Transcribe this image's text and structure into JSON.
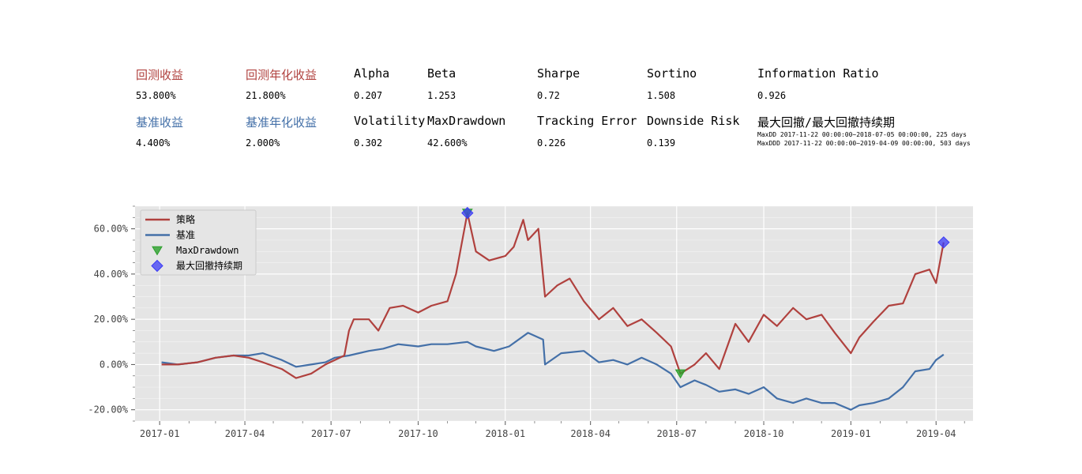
{
  "metrics": {
    "row1": [
      {
        "key": "return_label",
        "label": "回测收益",
        "value": "53.800%",
        "color": "#b0413e"
      },
      {
        "key": "annual_return_label",
        "label": "回测年化收益",
        "value": "21.800%",
        "color": "#b0413e"
      },
      {
        "key": "alpha",
        "label": "Alpha",
        "value": "0.207",
        "color": "#000000"
      },
      {
        "key": "beta",
        "label": "Beta",
        "value": "1.253",
        "color": "#000000"
      },
      {
        "key": "sharpe",
        "label": "Sharpe",
        "value": "0.72",
        "color": "#000000"
      },
      {
        "key": "sortino",
        "label": "Sortino",
        "value": "1.508",
        "color": "#000000"
      },
      {
        "key": "information_ratio",
        "label": "Information Ratio",
        "value": "0.926",
        "color": "#000000"
      }
    ],
    "row2": [
      {
        "key": "benchmark_return",
        "label": "基准收益",
        "value": "4.400%",
        "color": "#4470a8"
      },
      {
        "key": "benchmark_annual_return",
        "label": "基准年化收益",
        "value": "2.000%",
        "color": "#4470a8"
      },
      {
        "key": "volatility",
        "label": "Volatility",
        "value": "0.302",
        "color": "#000000"
      },
      {
        "key": "max_drawdown",
        "label": "MaxDrawdown",
        "value": "42.600%",
        "color": "#000000"
      },
      {
        "key": "tracking_error",
        "label": "Tracking Error",
        "value": "0.226",
        "color": "#000000"
      },
      {
        "key": "downside_risk",
        "label": "Downside Risk",
        "value": "0.139",
        "color": "#000000"
      },
      {
        "key": "maxdd_period",
        "label": "最大回撤/最大回撤持续期",
        "value": "",
        "color": "#000000"
      }
    ],
    "maxdd_note": "MaxDD  2017-11-22 00:00:00~2018-07-05 00:00:00, 225 days",
    "maxddd_note": "MaxDDD 2017-11-22 00:00:00~2019-04-09 00:00:00, 503 days"
  },
  "chart_data": {
    "type": "line",
    "title": "",
    "xlabel": "",
    "ylabel": "",
    "grid": true,
    "legend_position": "top-left",
    "xlim": [
      "2016-12-06",
      "2019-05-10"
    ],
    "ylim": [
      -25,
      70
    ],
    "y_ticks": [
      -20,
      0,
      20,
      40,
      60
    ],
    "y_tick_labels": [
      "-20.00%",
      "0.00%",
      "20.00%",
      "40.00%",
      "60.00%"
    ],
    "x_ticks": [
      "2017-01-01",
      "2017-04-01",
      "2017-07-01",
      "2017-10-01",
      "2018-01-01",
      "2018-04-01",
      "2018-07-01",
      "2018-10-01",
      "2019-01-01",
      "2019-04-01"
    ],
    "x_tick_labels": [
      "2017-01",
      "2017-04",
      "2017-07",
      "2017-10",
      "2018-01",
      "2018-04",
      "2018-07",
      "2018-10",
      "2019-01",
      "2019-04"
    ],
    "series": [
      {
        "name": "策略",
        "color": "#b0413e",
        "points": [
          [
            "2017-01-03",
            0
          ],
          [
            "2017-01-20",
            0
          ],
          [
            "2017-02-10",
            1
          ],
          [
            "2017-03-01",
            3
          ],
          [
            "2017-03-20",
            4
          ],
          [
            "2017-04-05",
            3
          ],
          [
            "2017-04-20",
            1
          ],
          [
            "2017-05-10",
            -2
          ],
          [
            "2017-05-25",
            -6
          ],
          [
            "2017-06-10",
            -4
          ],
          [
            "2017-06-25",
            0
          ],
          [
            "2017-07-05",
            2
          ],
          [
            "2017-07-15",
            4
          ],
          [
            "2017-07-20",
            15
          ],
          [
            "2017-07-25",
            20
          ],
          [
            "2017-08-10",
            20
          ],
          [
            "2017-08-20",
            15
          ],
          [
            "2017-09-01",
            25
          ],
          [
            "2017-09-15",
            26
          ],
          [
            "2017-10-01",
            23
          ],
          [
            "2017-10-15",
            26
          ],
          [
            "2017-11-01",
            28
          ],
          [
            "2017-11-10",
            40
          ],
          [
            "2017-11-22",
            67
          ],
          [
            "2017-12-01",
            50
          ],
          [
            "2017-12-15",
            46
          ],
          [
            "2018-01-01",
            48
          ],
          [
            "2018-01-10",
            52
          ],
          [
            "2018-01-20",
            64
          ],
          [
            "2018-01-25",
            55
          ],
          [
            "2018-02-05",
            60
          ],
          [
            "2018-02-12",
            30
          ],
          [
            "2018-02-25",
            35
          ],
          [
            "2018-03-10",
            38
          ],
          [
            "2018-03-25",
            28
          ],
          [
            "2018-04-10",
            20
          ],
          [
            "2018-04-25",
            25
          ],
          [
            "2018-05-10",
            17
          ],
          [
            "2018-05-25",
            20
          ],
          [
            "2018-06-10",
            14
          ],
          [
            "2018-06-25",
            8
          ],
          [
            "2018-07-05",
            -4
          ],
          [
            "2018-07-20",
            0
          ],
          [
            "2018-08-01",
            5
          ],
          [
            "2018-08-15",
            -2
          ],
          [
            "2018-09-01",
            18
          ],
          [
            "2018-09-15",
            10
          ],
          [
            "2018-10-01",
            22
          ],
          [
            "2018-10-15",
            17
          ],
          [
            "2018-11-01",
            25
          ],
          [
            "2018-11-15",
            20
          ],
          [
            "2018-12-01",
            22
          ],
          [
            "2018-12-15",
            14
          ],
          [
            "2019-01-01",
            5
          ],
          [
            "2019-01-10",
            12
          ],
          [
            "2019-01-25",
            19
          ],
          [
            "2019-02-10",
            26
          ],
          [
            "2019-02-25",
            27
          ],
          [
            "2019-03-10",
            40
          ],
          [
            "2019-03-25",
            42
          ],
          [
            "2019-04-01",
            36
          ],
          [
            "2019-04-09",
            54
          ]
        ]
      },
      {
        "name": "基准",
        "color": "#4470a8",
        "points": [
          [
            "2017-01-03",
            1
          ],
          [
            "2017-01-20",
            0
          ],
          [
            "2017-02-10",
            1
          ],
          [
            "2017-03-01",
            3
          ],
          [
            "2017-03-20",
            4
          ],
          [
            "2017-04-05",
            4
          ],
          [
            "2017-04-20",
            5
          ],
          [
            "2017-05-10",
            2
          ],
          [
            "2017-05-25",
            -1
          ],
          [
            "2017-06-10",
            0
          ],
          [
            "2017-06-25",
            1
          ],
          [
            "2017-07-05",
            3
          ],
          [
            "2017-07-20",
            4
          ],
          [
            "2017-08-10",
            6
          ],
          [
            "2017-08-25",
            7
          ],
          [
            "2017-09-10",
            9
          ],
          [
            "2017-10-01",
            8
          ],
          [
            "2017-10-15",
            9
          ],
          [
            "2017-11-01",
            9
          ],
          [
            "2017-11-22",
            10
          ],
          [
            "2017-12-01",
            8
          ],
          [
            "2017-12-20",
            6
          ],
          [
            "2018-01-05",
            8
          ],
          [
            "2018-01-25",
            14
          ],
          [
            "2018-02-10",
            11
          ],
          [
            "2018-02-12",
            0
          ],
          [
            "2018-03-01",
            5
          ],
          [
            "2018-03-25",
            6
          ],
          [
            "2018-04-10",
            1
          ],
          [
            "2018-04-25",
            2
          ],
          [
            "2018-05-10",
            0
          ],
          [
            "2018-05-25",
            3
          ],
          [
            "2018-06-10",
            0
          ],
          [
            "2018-06-25",
            -4
          ],
          [
            "2018-07-05",
            -10
          ],
          [
            "2018-07-20",
            -7
          ],
          [
            "2018-08-01",
            -9
          ],
          [
            "2018-08-15",
            -12
          ],
          [
            "2018-09-01",
            -11
          ],
          [
            "2018-09-15",
            -13
          ],
          [
            "2018-10-01",
            -10
          ],
          [
            "2018-10-15",
            -15
          ],
          [
            "2018-11-01",
            -17
          ],
          [
            "2018-11-15",
            -15
          ],
          [
            "2018-12-01",
            -17
          ],
          [
            "2018-12-15",
            -17
          ],
          [
            "2019-01-01",
            -20
          ],
          [
            "2019-01-10",
            -18
          ],
          [
            "2019-01-25",
            -17
          ],
          [
            "2019-02-10",
            -15
          ],
          [
            "2019-02-25",
            -10
          ],
          [
            "2019-03-10",
            -3
          ],
          [
            "2019-03-25",
            -2
          ],
          [
            "2019-04-01",
            2
          ],
          [
            "2019-04-09",
            4.4
          ]
        ]
      }
    ],
    "markers": [
      {
        "name": "MaxDrawdown",
        "shape": "triangle-down",
        "color": "#2ca02c",
        "points": [
          [
            "2017-11-22",
            67
          ],
          [
            "2018-07-05",
            -4
          ]
        ]
      },
      {
        "name": "最大回撤持续期",
        "shape": "diamond",
        "color": "#3b3bf5",
        "points": [
          [
            "2017-11-22",
            67
          ],
          [
            "2019-04-09",
            54
          ]
        ]
      }
    ]
  }
}
